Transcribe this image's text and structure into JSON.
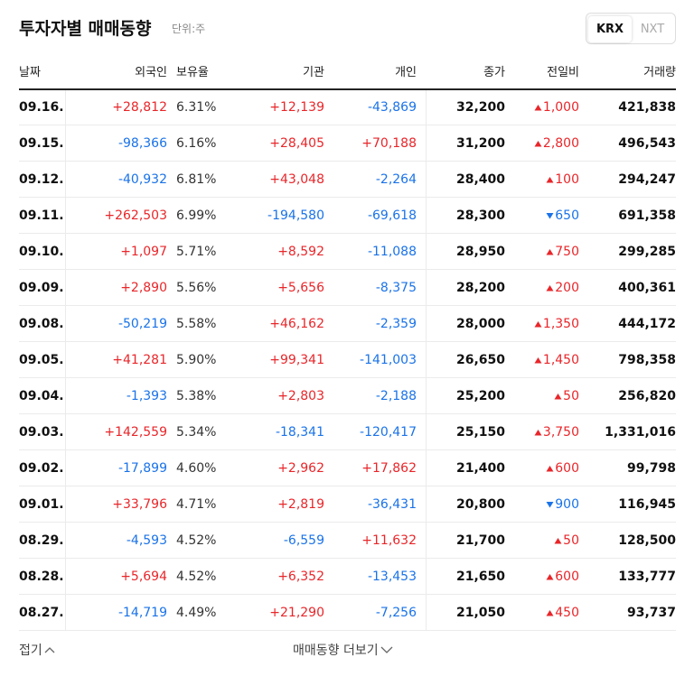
{
  "header": {
    "title": "투자자별 매매동향",
    "unit": "단위:주",
    "tabs": [
      "KRX",
      "NXT"
    ]
  },
  "table": {
    "columns": [
      "날짜",
      "외국인",
      "보유율",
      "기관",
      "개인",
      "종가",
      "전일비",
      "거래량"
    ],
    "rows": [
      [
        "09.16.",
        "+28,812",
        "6.31%",
        "+12,139",
        "-43,869",
        "32,200",
        {
          "dir": "up",
          "text": "1,000"
        },
        "421,838"
      ],
      [
        "09.15.",
        "-98,366",
        "6.16%",
        "+28,405",
        "+70,188",
        "31,200",
        {
          "dir": "up",
          "text": "2,800"
        },
        "496,543"
      ],
      [
        "09.12.",
        "-40,932",
        "6.81%",
        "+43,048",
        "-2,264",
        "28,400",
        {
          "dir": "up",
          "text": "100"
        },
        "294,247"
      ],
      [
        "09.11.",
        "+262,503",
        "6.99%",
        "-194,580",
        "-69,618",
        "28,300",
        {
          "dir": "down",
          "text": "650"
        },
        "691,358"
      ],
      [
        "09.10.",
        "+1,097",
        "5.71%",
        "+8,592",
        "-11,088",
        "28,950",
        {
          "dir": "up",
          "text": "750"
        },
        "299,285"
      ],
      [
        "09.09.",
        "+2,890",
        "5.56%",
        "+5,656",
        "-8,375",
        "28,200",
        {
          "dir": "up",
          "text": "200"
        },
        "400,361"
      ],
      [
        "09.08.",
        "-50,219",
        "5.58%",
        "+46,162",
        "-2,359",
        "28,000",
        {
          "dir": "up",
          "text": "1,350"
        },
        "444,172"
      ],
      [
        "09.05.",
        "+41,281",
        "5.90%",
        "+99,341",
        "-141,003",
        "26,650",
        {
          "dir": "up",
          "text": "1,450"
        },
        "798,358"
      ],
      [
        "09.04.",
        "-1,393",
        "5.38%",
        "+2,803",
        "-2,188",
        "25,200",
        {
          "dir": "up",
          "text": "50"
        },
        "256,820"
      ],
      [
        "09.03.",
        "+142,559",
        "5.34%",
        "-18,341",
        "-120,417",
        "25,150",
        {
          "dir": "up",
          "text": "3,750"
        },
        "1,331,016"
      ],
      [
        "09.02.",
        "-17,899",
        "4.60%",
        "+2,962",
        "+17,862",
        "21,400",
        {
          "dir": "up",
          "text": "600"
        },
        "99,798"
      ],
      [
        "09.01.",
        "+33,796",
        "4.71%",
        "+2,819",
        "-36,431",
        "20,800",
        {
          "dir": "down",
          "text": "900"
        },
        "116,945"
      ],
      [
        "08.29.",
        "-4,593",
        "4.52%",
        "-6,559",
        "+11,632",
        "21,700",
        {
          "dir": "up",
          "text": "50"
        },
        "128,500"
      ],
      [
        "08.28.",
        "+5,694",
        "4.52%",
        "+6,352",
        "-13,453",
        "21,650",
        {
          "dir": "up",
          "text": "600"
        },
        "133,777"
      ],
      [
        "08.27.",
        "-14,719",
        "4.49%",
        "+21,290",
        "-7,256",
        "21,050",
        {
          "dir": "up",
          "text": "450"
        },
        "93,737"
      ]
    ]
  },
  "footer": {
    "collapse": "접기",
    "more": "매매동향 더보기"
  }
}
